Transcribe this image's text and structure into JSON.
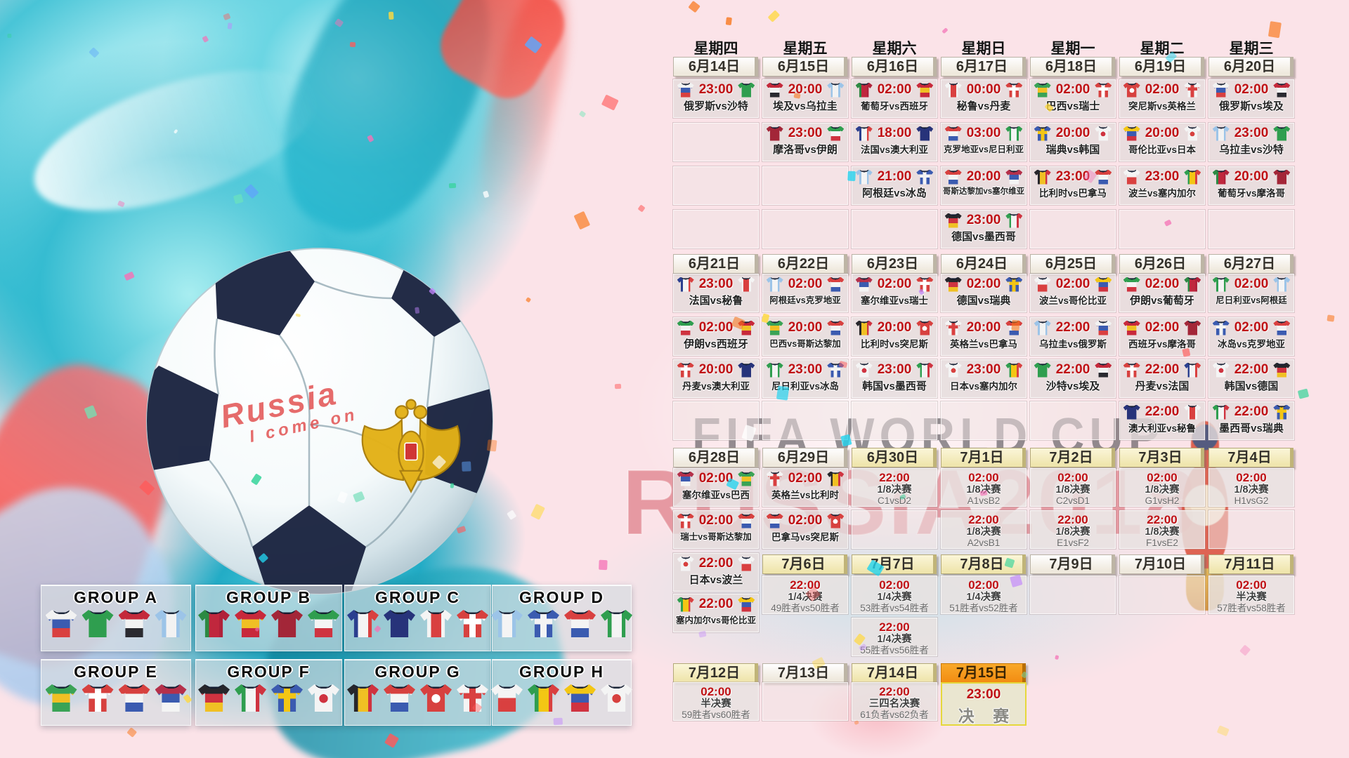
{
  "watermark": {
    "line1": "FIFA WORLD CUP",
    "line2": "RUSSIA2018"
  },
  "ball": {
    "graffiti_line1": "Russia",
    "graffiti_line2": "I come on"
  },
  "weekdays": [
    "星期四",
    "星期五",
    "星期六",
    "星期日",
    "星期一",
    "星期二",
    "星期三"
  ],
  "stage_colors": {
    "time_red": "#bf1014",
    "date_gold": "#efe5ad",
    "final_orange": "#f59a1d",
    "art_teal": "#2fb9cf",
    "base_pink": "#fbe3e8"
  },
  "weeks": [
    {
      "dates": [
        {
          "label": "6月14日",
          "style": "plain"
        },
        {
          "label": "6月15日",
          "style": "plain"
        },
        {
          "label": "6月16日",
          "style": "plain"
        },
        {
          "label": "6月17日",
          "style": "plain"
        },
        {
          "label": "6月18日",
          "style": "plain"
        },
        {
          "label": "6月19日",
          "style": "plain"
        },
        {
          "label": "6月20日",
          "style": "plain"
        }
      ],
      "rows": [
        [
          {
            "type": "match",
            "time": "23:00",
            "home": "俄罗斯",
            "away": "沙特",
            "label": "俄罗斯vs沙特"
          },
          {
            "type": "match",
            "time": "20:00",
            "home": "埃及",
            "away": "乌拉圭",
            "label": "埃及vs乌拉圭"
          },
          {
            "type": "match",
            "time": "02:00",
            "home": "葡萄牙",
            "away": "西班牙",
            "label": "葡萄牙vs西班牙"
          },
          {
            "type": "match",
            "time": "00:00",
            "home": "秘鲁",
            "away": "丹麦",
            "label": "秘鲁vs丹麦"
          },
          {
            "type": "match",
            "time": "02:00",
            "home": "巴西",
            "away": "瑞士",
            "label": "巴西vs瑞士"
          },
          {
            "type": "match",
            "time": "02:00",
            "home": "突尼斯",
            "away": "英格兰",
            "label": "突尼斯vs英格兰"
          },
          {
            "type": "match",
            "time": "02:00",
            "home": "俄罗斯",
            "away": "埃及",
            "label": "俄罗斯vs埃及"
          }
        ],
        [
          {
            "type": "empty"
          },
          {
            "type": "match",
            "time": "23:00",
            "home": "摩洛哥",
            "away": "伊朗",
            "label": "摩洛哥vs伊朗"
          },
          {
            "type": "match",
            "time": "18:00",
            "home": "法国",
            "away": "澳大利亚",
            "label": "法国vs澳大利亚"
          },
          {
            "type": "match",
            "time": "03:00",
            "home": "克罗地亚",
            "away": "尼日利亚",
            "label": "克罗地亚vs尼日利亚"
          },
          {
            "type": "match",
            "time": "20:00",
            "home": "瑞典",
            "away": "韩国",
            "label": "瑞典vs韩国"
          },
          {
            "type": "match",
            "time": "20:00",
            "home": "哥伦比亚",
            "away": "日本",
            "label": "哥伦比亚vs日本"
          },
          {
            "type": "match",
            "time": "23:00",
            "home": "乌拉圭",
            "away": "沙特",
            "label": "乌拉圭vs沙特"
          }
        ],
        [
          {
            "type": "empty"
          },
          {
            "type": "empty"
          },
          {
            "type": "match",
            "time": "21:00",
            "home": "阿根廷",
            "away": "冰岛",
            "label": "阿根廷vs冰岛"
          },
          {
            "type": "match",
            "time": "20:00",
            "home": "哥斯达黎加",
            "away": "塞尔维亚",
            "label": "哥斯达黎加vs塞尔维亚"
          },
          {
            "type": "match",
            "time": "23:00",
            "home": "比利时",
            "away": "巴拿马",
            "label": "比利时vs巴拿马"
          },
          {
            "type": "match",
            "time": "23:00",
            "home": "波兰",
            "away": "塞内加尔",
            "label": "波兰vs塞内加尔"
          },
          {
            "type": "match",
            "time": "20:00",
            "home": "葡萄牙",
            "away": "摩洛哥",
            "label": "葡萄牙vs摩洛哥"
          }
        ],
        [
          {
            "type": "empty"
          },
          {
            "type": "empty"
          },
          {
            "type": "empty"
          },
          {
            "type": "match",
            "time": "23:00",
            "home": "德国",
            "away": "墨西哥",
            "label": "德国vs墨西哥"
          },
          {
            "type": "empty"
          },
          {
            "type": "empty"
          },
          {
            "type": "empty"
          }
        ]
      ]
    },
    {
      "dates": [
        {
          "label": "6月21日",
          "style": "plain"
        },
        {
          "label": "6月22日",
          "style": "plain"
        },
        {
          "label": "6月23日",
          "style": "plain"
        },
        {
          "label": "6月24日",
          "style": "plain"
        },
        {
          "label": "6月25日",
          "style": "plain"
        },
        {
          "label": "6月26日",
          "style": "plain"
        },
        {
          "label": "6月27日",
          "style": "plain"
        }
      ],
      "rows": [
        [
          {
            "type": "match",
            "time": "23:00",
            "home": "法国",
            "away": "秘鲁",
            "label": "法国vs秘鲁"
          },
          {
            "type": "match",
            "time": "02:00",
            "home": "阿根廷",
            "away": "克罗地亚",
            "label": "阿根廷vs克罗地亚"
          },
          {
            "type": "match",
            "time": "02:00",
            "home": "塞尔维亚",
            "away": "瑞士",
            "label": "塞尔维亚vs瑞士"
          },
          {
            "type": "match",
            "time": "02:00",
            "home": "德国",
            "away": "瑞典",
            "label": "德国vs瑞典"
          },
          {
            "type": "match",
            "time": "02:00",
            "home": "波兰",
            "away": "哥伦比亚",
            "label": "波兰vs哥伦比亚"
          },
          {
            "type": "match",
            "time": "02:00",
            "home": "伊朗",
            "away": "葡萄牙",
            "label": "伊朗vs葡萄牙"
          },
          {
            "type": "match",
            "time": "02:00",
            "home": "尼日利亚",
            "away": "阿根廷",
            "label": "尼日利亚vs阿根廷"
          }
        ],
        [
          {
            "type": "match",
            "time": "02:00",
            "home": "伊朗",
            "away": "西班牙",
            "label": "伊朗vs西班牙"
          },
          {
            "type": "match",
            "time": "20:00",
            "home": "巴西",
            "away": "哥斯达黎加",
            "label": "巴西vs哥斯达黎加"
          },
          {
            "type": "match",
            "time": "20:00",
            "home": "比利时",
            "away": "突尼斯",
            "label": "比利时vs突尼斯"
          },
          {
            "type": "match",
            "time": "20:00",
            "home": "英格兰",
            "away": "巴拿马",
            "label": "英格兰vs巴拿马"
          },
          {
            "type": "match",
            "time": "22:00",
            "home": "乌拉圭",
            "away": "俄罗斯",
            "label": "乌拉圭vs俄罗斯"
          },
          {
            "type": "match",
            "time": "02:00",
            "home": "西班牙",
            "away": "摩洛哥",
            "label": "西班牙vs摩洛哥"
          },
          {
            "type": "match",
            "time": "02:00",
            "home": "冰岛",
            "away": "克罗地亚",
            "label": "冰岛vs克罗地亚"
          }
        ],
        [
          {
            "type": "match",
            "time": "20:00",
            "home": "丹麦",
            "away": "澳大利亚",
            "label": "丹麦vs澳大利亚"
          },
          {
            "type": "match",
            "time": "23:00",
            "home": "尼日利亚",
            "away": "冰岛",
            "label": "尼日利亚vs冰岛"
          },
          {
            "type": "match",
            "time": "23:00",
            "home": "韩国",
            "away": "墨西哥",
            "label": "韩国vs墨西哥"
          },
          {
            "type": "match",
            "time": "23:00",
            "home": "日本",
            "away": "塞内加尔",
            "label": "日本vs塞内加尔"
          },
          {
            "type": "match",
            "time": "22:00",
            "home": "沙特",
            "away": "埃及",
            "label": "沙特vs埃及"
          },
          {
            "type": "match",
            "time": "22:00",
            "home": "丹麦",
            "away": "法国",
            "label": "丹麦vs法国"
          },
          {
            "type": "match",
            "time": "22:00",
            "home": "韩国",
            "away": "德国",
            "label": "韩国vs德国"
          }
        ],
        [
          {
            "type": "empty"
          },
          {
            "type": "empty"
          },
          {
            "type": "empty"
          },
          {
            "type": "empty"
          },
          {
            "type": "empty"
          },
          {
            "type": "match",
            "time": "22:00",
            "home": "澳大利亚",
            "away": "秘鲁",
            "label": "澳大利亚vs秘鲁"
          },
          {
            "type": "match",
            "time": "22:00",
            "home": "墨西哥",
            "away": "瑞典",
            "label": "墨西哥vs瑞典"
          }
        ]
      ]
    },
    {
      "dates": [
        {
          "label": "6月28日",
          "style": "plain"
        },
        {
          "label": "6月29日",
          "style": "plain"
        },
        {
          "label": "6月30日",
          "style": "gold"
        },
        {
          "label": "7月1日",
          "style": "gold"
        },
        {
          "label": "7月2日",
          "style": "gold"
        },
        {
          "label": "7月3日",
          "style": "gold"
        },
        {
          "label": "7月4日",
          "style": "gold"
        }
      ],
      "rows": [
        [
          {
            "type": "match",
            "time": "02:00",
            "home": "塞尔维亚",
            "away": "巴西",
            "label": "塞尔维亚vs巴西"
          },
          {
            "type": "match",
            "time": "02:00",
            "home": "英格兰",
            "away": "比利时",
            "label": "英格兰vs比利时"
          },
          {
            "type": "knockout",
            "time": "22:00",
            "stage": "1/8决赛",
            "teams": "C1vsD2"
          },
          {
            "type": "knockout",
            "time": "02:00",
            "stage": "1/8决赛",
            "teams": "A1vsB2"
          },
          {
            "type": "knockout",
            "time": "02:00",
            "stage": "1/8决赛",
            "teams": "C2vsD1"
          },
          {
            "type": "knockout",
            "time": "02:00",
            "stage": "1/8决赛",
            "teams": "G1vsH2"
          },
          {
            "type": "knockout",
            "time": "02:00",
            "stage": "1/8决赛",
            "teams": "H1vsG2"
          }
        ],
        [
          {
            "type": "match",
            "time": "02:00",
            "home": "瑞士",
            "away": "哥斯达黎加",
            "label": "瑞士vs哥斯达黎加"
          },
          {
            "type": "match",
            "time": "02:00",
            "home": "巴拿马",
            "away": "突尼斯",
            "label": "巴拿马vs突尼斯"
          },
          {
            "type": "empty"
          },
          {
            "type": "knockout",
            "time": "22:00",
            "stage": "1/8决赛",
            "teams": "A2vsB1"
          },
          {
            "type": "knockout",
            "time": "22:00",
            "stage": "1/8决赛",
            "teams": "E1vsF2"
          },
          {
            "type": "knockout",
            "time": "22:00",
            "stage": "1/8决赛",
            "teams": "F1vsE2"
          },
          {
            "type": "empty"
          }
        ]
      ]
    },
    {
      "dates": [
        null,
        {
          "label": "7月6日",
          "style": "gold"
        },
        {
          "label": "7月7日",
          "style": "gold"
        },
        {
          "label": "7月8日",
          "style": "gold"
        },
        {
          "label": "7月9日",
          "style": "plain"
        },
        {
          "label": "7月10日",
          "style": "plain"
        },
        {
          "label": "7月11日",
          "style": "gold"
        }
      ],
      "col0_cells": [
        {
          "type": "match",
          "time": "22:00",
          "home": "日本",
          "away": "波兰",
          "label": "日本vs波兰"
        },
        {
          "type": "match",
          "time": "22:00",
          "home": "塞内加尔",
          "away": "哥伦比亚",
          "label": "塞内加尔vs哥伦比亚"
        }
      ],
      "rows": [
        [
          null,
          {
            "type": "knockout",
            "time": "22:00",
            "stage": "1/4决赛",
            "teams": "49胜者vs50胜者"
          },
          {
            "type": "knockout",
            "time": "02:00",
            "stage": "1/4决赛",
            "teams": "53胜者vs54胜者"
          },
          {
            "type": "knockout",
            "time": "02:00",
            "stage": "1/4决赛",
            "teams": "51胜者vs52胜者"
          },
          {
            "type": "empty"
          },
          {
            "type": "empty"
          },
          {
            "type": "knockout",
            "time": "02:00",
            "stage": "半决赛",
            "teams": "57胜者vs58胜者"
          }
        ],
        [
          null,
          null,
          {
            "type": "knockout",
            "time": "22:00",
            "stage": "1/4决赛",
            "teams": "55胜者vs56胜者"
          },
          null,
          null,
          null,
          null
        ]
      ]
    },
    {
      "dates": [
        {
          "label": "7月12日",
          "style": "gold"
        },
        {
          "label": "7月13日",
          "style": "plain"
        },
        {
          "label": "7月14日",
          "style": "gold"
        },
        {
          "label": "7月15日",
          "style": "orange"
        },
        null,
        null,
        null
      ],
      "rows": [
        [
          {
            "type": "knockout",
            "time": "02:00",
            "stage": "半决赛",
            "teams": "59胜者vs60胜者"
          },
          {
            "type": "empty"
          },
          {
            "type": "knockout",
            "time": "22:00",
            "stage": "三四名决赛",
            "teams": "61负者vs62负者"
          },
          {
            "type": "final",
            "time": "23:00",
            "stage": "决 赛"
          },
          null,
          null,
          null
        ]
      ]
    }
  ],
  "groups": [
    {
      "name": "GROUP A",
      "teams": [
        "俄罗斯",
        "沙特",
        "埃及",
        "乌拉圭"
      ]
    },
    {
      "name": "GROUP B",
      "teams": [
        "葡萄牙",
        "西班牙",
        "摩洛哥",
        "伊朗"
      ]
    },
    {
      "name": "GROUP C",
      "teams": [
        "法国",
        "澳大利亚",
        "秘鲁",
        "丹麦"
      ]
    },
    {
      "name": "GROUP D",
      "teams": [
        "阿根廷",
        "冰岛",
        "克罗地亚",
        "尼日利亚"
      ]
    },
    {
      "name": "GROUP E",
      "teams": [
        "巴西",
        "瑞士",
        "哥斯达黎加",
        "塞尔维亚"
      ]
    },
    {
      "name": "GROUP F",
      "teams": [
        "德国",
        "墨西哥",
        "瑞典",
        "韩国"
      ]
    },
    {
      "name": "GROUP G",
      "teams": [
        "比利时",
        "巴拿马",
        "突尼斯",
        "英格兰"
      ]
    },
    {
      "name": "GROUP H",
      "teams": [
        "波兰",
        "塞内加尔",
        "哥伦比亚",
        "日本"
      ]
    }
  ],
  "teams": {
    "俄罗斯": {
      "dir": "h",
      "c": [
        "#f2f2f2",
        "#3b5bb0",
        "#d94040"
      ]
    },
    "沙特": {
      "dir": "h",
      "c": [
        "#2f9e4f"
      ]
    },
    "埃及": {
      "dir": "h",
      "c": [
        "#c4293b",
        "#f2f2f2",
        "#2a2a30"
      ]
    },
    "乌拉圭": {
      "dir": "v",
      "c": [
        "#9cc4e8",
        "#f2f2f2",
        "#9cc4e8"
      ]
    },
    "葡萄牙": {
      "dir": "v",
      "c": [
        "#2c8a43",
        "#c0273d",
        "#b0213a"
      ]
    },
    "西班牙": {
      "dir": "h",
      "c": [
        "#c8293b",
        "#f0c024",
        "#c8293b"
      ]
    },
    "摩洛哥": {
      "dir": "h",
      "c": [
        "#a32638"
      ]
    },
    "伊朗": {
      "dir": "h",
      "c": [
        "#2f9e4f",
        "#f4f4f4",
        "#cf3340"
      ]
    },
    "法国": {
      "dir": "v",
      "c": [
        "#2b3f8f",
        "#f4f4f4",
        "#d94040"
      ]
    },
    "澳大利亚": {
      "dir": "h",
      "c": [
        "#27337a"
      ]
    },
    "秘鲁": {
      "dir": "v",
      "c": [
        "#f4f4f4",
        "#d94040",
        "#f4f4f4"
      ]
    },
    "丹麦": {
      "dir": "h",
      "c": [
        "#d7413f"
      ],
      "cross": "#ffffff"
    },
    "克罗地亚": {
      "dir": "h",
      "c": [
        "#d94040",
        "#f4f4f4",
        "#3b5bb0"
      ]
    },
    "尼日利亚": {
      "dir": "v",
      "c": [
        "#2f9e4f",
        "#f4f4f4",
        "#2f9e4f"
      ]
    },
    "哥斯达黎加": {
      "dir": "h",
      "c": [
        "#d7413f",
        "#f4f4f4",
        "#3b5bb0"
      ]
    },
    "塞尔维亚": {
      "dir": "h",
      "c": [
        "#b5304a",
        "#3b5bb0",
        "#f4f4f4"
      ]
    },
    "巴西": {
      "dir": "h",
      "c": [
        "#3aa356",
        "#f0c024",
        "#3aa356"
      ]
    },
    "瑞士": {
      "dir": "h",
      "c": [
        "#d7413f"
      ],
      "cross": "#ffffff"
    },
    "德国": {
      "dir": "h",
      "c": [
        "#26262b",
        "#cf3340",
        "#f0c024"
      ]
    },
    "墨西哥": {
      "dir": "v",
      "c": [
        "#2f9e4f",
        "#f4f4f4",
        "#cf3340"
      ]
    },
    "瑞典": {
      "dir": "h",
      "c": [
        "#3b5bb0"
      ],
      "cross": "#f3c614"
    },
    "韩国": {
      "dir": "h",
      "c": [
        "#f4f4f4"
      ],
      "dot": "#cf3340"
    },
    "比利时": {
      "dir": "v",
      "c": [
        "#26262b",
        "#f0c024",
        "#cf3340"
      ]
    },
    "巴拿马": {
      "dir": "h",
      "c": [
        "#d7413f",
        "#f4f4f4",
        "#3b5bb0"
      ]
    },
    "突尼斯": {
      "dir": "h",
      "c": [
        "#d7413f"
      ],
      "dot": "#ffffff"
    },
    "英格兰": {
      "dir": "h",
      "c": [
        "#f4f4f4"
      ],
      "cross": "#d94040"
    },
    "波兰": {
      "dir": "h",
      "c": [
        "#f4f4f4",
        "#d94040"
      ]
    },
    "塞内加尔": {
      "dir": "v",
      "c": [
        "#2f9e4f",
        "#f3c614",
        "#d94040"
      ]
    },
    "哥伦比亚": {
      "dir": "h",
      "c": [
        "#f3c614",
        "#3b5bb0",
        "#cf3340"
      ]
    },
    "日本": {
      "dir": "h",
      "c": [
        "#f4f4f4"
      ],
      "dot": "#d7413f"
    },
    "冰岛": {
      "dir": "h",
      "c": [
        "#3b5bb0"
      ],
      "cross": "#f4f4f4"
    },
    "阿根廷": {
      "dir": "v",
      "c": [
        "#9cc4e8",
        "#f4f4f4",
        "#9cc4e8"
      ]
    }
  }
}
